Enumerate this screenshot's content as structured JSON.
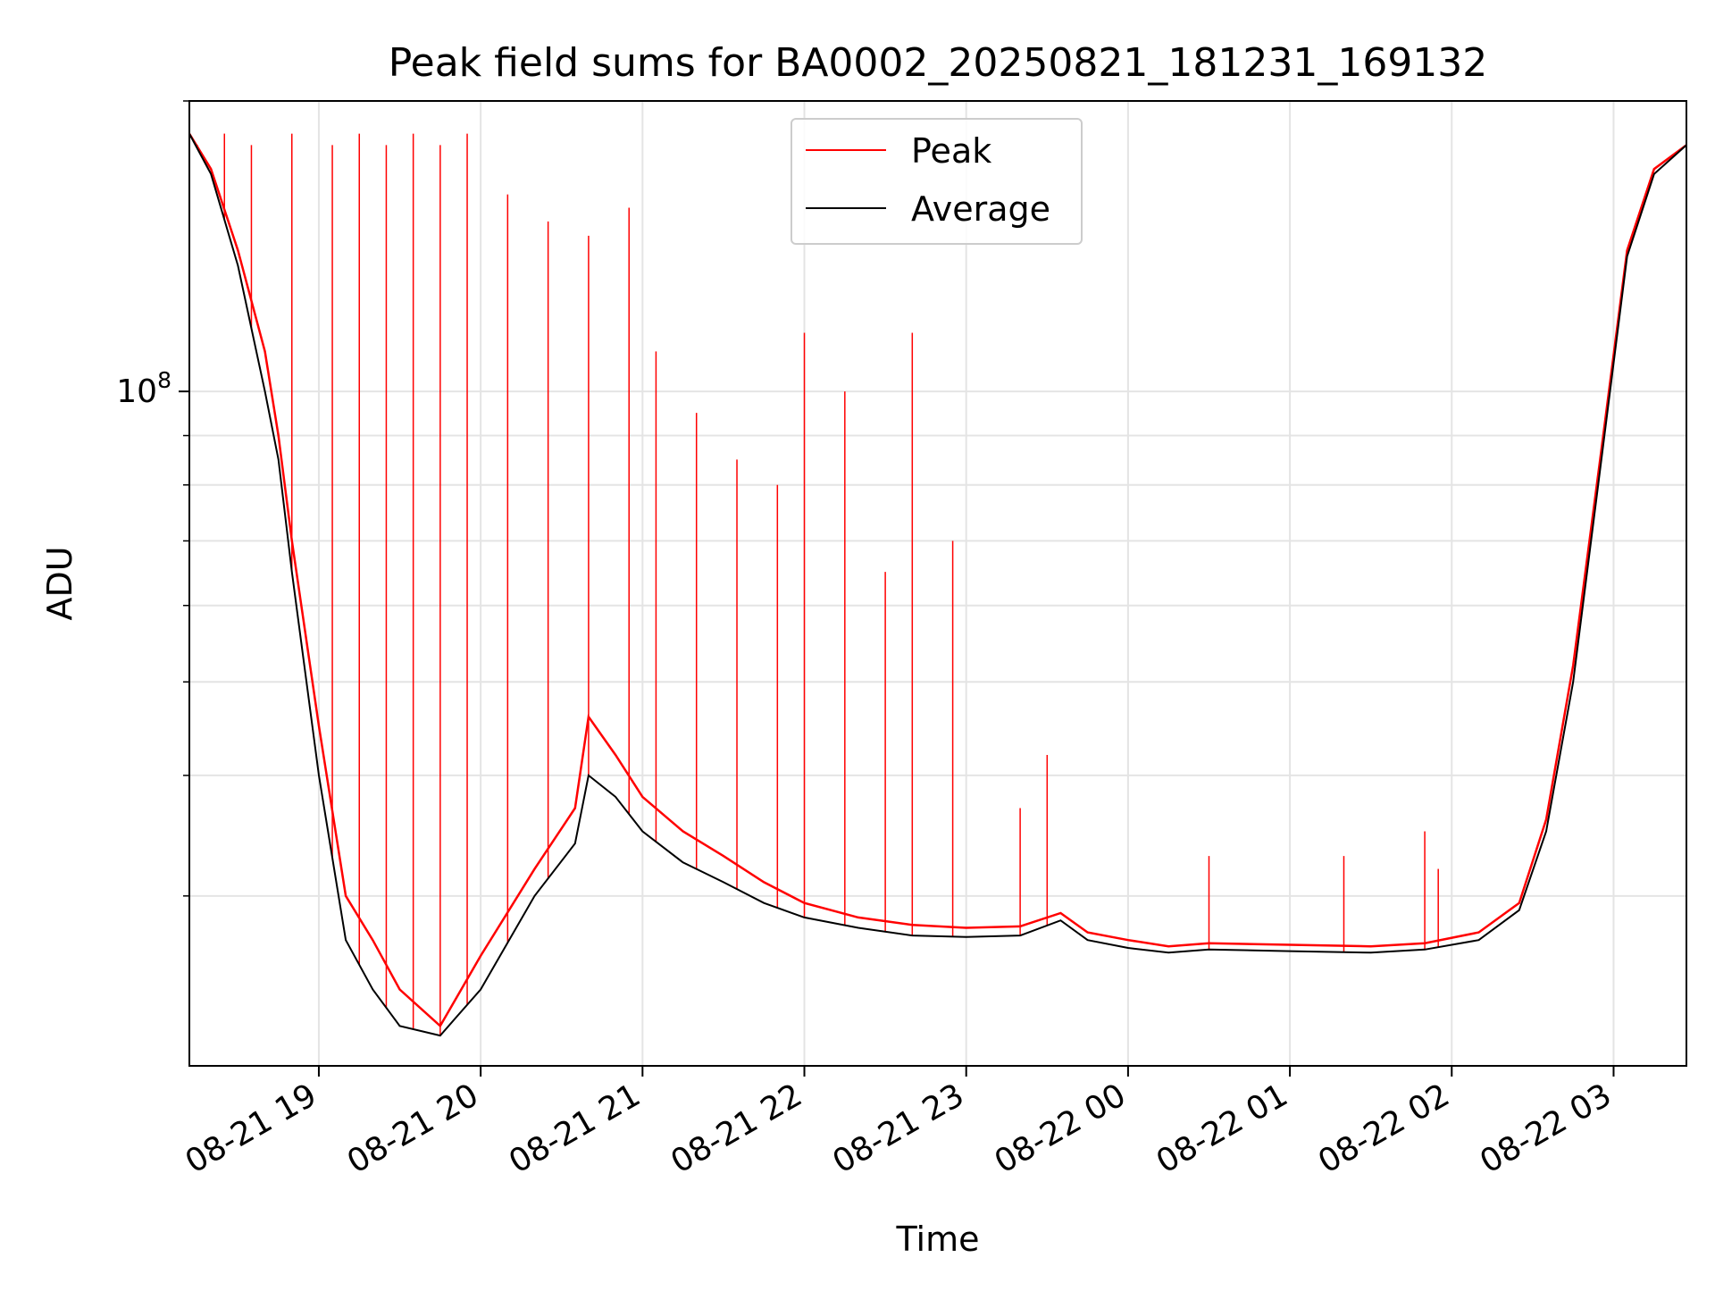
{
  "chart_data": {
    "type": "line",
    "title": "Peak field sums for BA0002_20250821_181231_169132",
    "xlabel": "Time",
    "ylabel": "ADU",
    "yscale": "log",
    "ylim": [
      20000000,
      200000000
    ],
    "xlim": [
      "2025-08-21 18:12",
      "2025-08-22 03:27"
    ],
    "x_ticks": [
      "08-21 19",
      "08-21 20",
      "08-21 21",
      "08-21 22",
      "08-21 23",
      "08-22 00",
      "08-22 01",
      "08-22 02",
      "08-22 03"
    ],
    "y_major_ticks": [
      {
        "value": 100000000,
        "base": "10",
        "exponent": "8"
      }
    ],
    "y_minor_ticks": [
      30000000,
      40000000,
      50000000,
      60000000,
      70000000,
      80000000,
      90000000,
      200000000
    ],
    "grid": true,
    "legend_position": "upper center",
    "colors": {
      "peak": "#ff0000",
      "average": "#000000"
    },
    "series": [
      {
        "name": "Peak",
        "color": "#ff0000",
        "points": [
          [
            "2025-08-21 18:12",
            185000000
          ],
          [
            "2025-08-21 18:20",
            170000000
          ],
          [
            "2025-08-21 18:30",
            140000000
          ],
          [
            "2025-08-21 18:40",
            110000000
          ],
          [
            "2025-08-21 18:45",
            90000000
          ],
          [
            "2025-08-21 18:50",
            70000000
          ],
          [
            "2025-08-21 19:00",
            45000000
          ],
          [
            "2025-08-21 19:10",
            30000000
          ],
          [
            "2025-08-21 19:20",
            27000000
          ],
          [
            "2025-08-21 19:30",
            24000000
          ],
          [
            "2025-08-21 19:45",
            22000000
          ],
          [
            "2025-08-21 20:00",
            26000000
          ],
          [
            "2025-08-21 20:20",
            32000000
          ],
          [
            "2025-08-21 20:35",
            37000000
          ],
          [
            "2025-08-21 20:40",
            46000000
          ],
          [
            "2025-08-21 20:50",
            42000000
          ],
          [
            "2025-08-21 21:00",
            38000000
          ],
          [
            "2025-08-21 21:15",
            35000000
          ],
          [
            "2025-08-21 21:30",
            33000000
          ],
          [
            "2025-08-21 21:45",
            31000000
          ],
          [
            "2025-08-21 22:00",
            29500000
          ],
          [
            "2025-08-21 22:20",
            28500000
          ],
          [
            "2025-08-21 22:40",
            28000000
          ],
          [
            "2025-08-21 23:00",
            27800000
          ],
          [
            "2025-08-21 23:20",
            27900000
          ],
          [
            "2025-08-21 23:35",
            28800000
          ],
          [
            "2025-08-21 23:45",
            27500000
          ],
          [
            "2025-08-22 00:00",
            27000000
          ],
          [
            "2025-08-22 00:15",
            26600000
          ],
          [
            "2025-08-22 00:30",
            26800000
          ],
          [
            "2025-08-22 01:00",
            26700000
          ],
          [
            "2025-08-22 01:30",
            26600000
          ],
          [
            "2025-08-22 01:50",
            26800000
          ],
          [
            "2025-08-22 02:10",
            27500000
          ],
          [
            "2025-08-22 02:25",
            29500000
          ],
          [
            "2025-08-22 02:35",
            36000000
          ],
          [
            "2025-08-22 02:45",
            52000000
          ],
          [
            "2025-08-22 02:55",
            85000000
          ],
          [
            "2025-08-22 03:05",
            140000000
          ],
          [
            "2025-08-22 03:15",
            170000000
          ],
          [
            "2025-08-22 03:27",
            180000000
          ]
        ],
        "spikes": [
          [
            "2025-08-21 18:15",
            180000000
          ],
          [
            "2025-08-21 18:25",
            185000000
          ],
          [
            "2025-08-21 18:35",
            180000000
          ],
          [
            "2025-08-21 18:50",
            185000000
          ],
          [
            "2025-08-21 19:05",
            180000000
          ],
          [
            "2025-08-21 19:15",
            185000000
          ],
          [
            "2025-08-21 19:25",
            180000000
          ],
          [
            "2025-08-21 19:35",
            185000000
          ],
          [
            "2025-08-21 19:45",
            180000000
          ],
          [
            "2025-08-21 19:55",
            185000000
          ],
          [
            "2025-08-21 20:10",
            160000000
          ],
          [
            "2025-08-21 20:25",
            150000000
          ],
          [
            "2025-08-21 20:40",
            145000000
          ],
          [
            "2025-08-21 20:55",
            155000000
          ],
          [
            "2025-08-21 21:05",
            110000000
          ],
          [
            "2025-08-21 21:20",
            95000000
          ],
          [
            "2025-08-21 21:35",
            85000000
          ],
          [
            "2025-08-21 21:50",
            80000000
          ],
          [
            "2025-08-21 22:00",
            115000000
          ],
          [
            "2025-08-21 22:15",
            100000000
          ],
          [
            "2025-08-21 22:30",
            65000000
          ],
          [
            "2025-08-21 22:40",
            115000000
          ],
          [
            "2025-08-21 22:55",
            70000000
          ],
          [
            "2025-08-21 23:20",
            37000000
          ],
          [
            "2025-08-21 23:30",
            42000000
          ],
          [
            "2025-08-22 00:30",
            33000000
          ],
          [
            "2025-08-22 01:20",
            33000000
          ],
          [
            "2025-08-22 01:50",
            35000000
          ],
          [
            "2025-08-22 01:55",
            32000000
          ]
        ]
      },
      {
        "name": "Average",
        "color": "#000000",
        "points": [
          [
            "2025-08-21 18:12",
            185000000
          ],
          [
            "2025-08-21 18:20",
            168000000
          ],
          [
            "2025-08-21 18:30",
            135000000
          ],
          [
            "2025-08-21 18:40",
            100000000
          ],
          [
            "2025-08-21 18:45",
            85000000
          ],
          [
            "2025-08-21 18:50",
            65000000
          ],
          [
            "2025-08-21 19:00",
            40000000
          ],
          [
            "2025-08-21 19:10",
            27000000
          ],
          [
            "2025-08-21 19:20",
            24000000
          ],
          [
            "2025-08-21 19:30",
            22000000
          ],
          [
            "2025-08-21 19:45",
            21500000
          ],
          [
            "2025-08-21 20:00",
            24000000
          ],
          [
            "2025-08-21 20:20",
            30000000
          ],
          [
            "2025-08-21 20:35",
            34000000
          ],
          [
            "2025-08-21 20:40",
            40000000
          ],
          [
            "2025-08-21 20:50",
            38000000
          ],
          [
            "2025-08-21 21:00",
            35000000
          ],
          [
            "2025-08-21 21:15",
            32500000
          ],
          [
            "2025-08-21 21:30",
            31000000
          ],
          [
            "2025-08-21 21:45",
            29500000
          ],
          [
            "2025-08-21 22:00",
            28500000
          ],
          [
            "2025-08-21 22:20",
            27800000
          ],
          [
            "2025-08-21 22:40",
            27300000
          ],
          [
            "2025-08-21 23:00",
            27200000
          ],
          [
            "2025-08-21 23:20",
            27300000
          ],
          [
            "2025-08-21 23:35",
            28300000
          ],
          [
            "2025-08-21 23:45",
            27000000
          ],
          [
            "2025-08-22 00:00",
            26500000
          ],
          [
            "2025-08-22 00:15",
            26200000
          ],
          [
            "2025-08-22 00:30",
            26400000
          ],
          [
            "2025-08-22 01:00",
            26300000
          ],
          [
            "2025-08-22 01:30",
            26200000
          ],
          [
            "2025-08-22 01:50",
            26400000
          ],
          [
            "2025-08-22 02:10",
            27000000
          ],
          [
            "2025-08-22 02:25",
            29000000
          ],
          [
            "2025-08-22 02:35",
            35000000
          ],
          [
            "2025-08-22 02:45",
            50000000
          ],
          [
            "2025-08-22 02:55",
            83000000
          ],
          [
            "2025-08-22 03:05",
            138000000
          ],
          [
            "2025-08-22 03:15",
            168000000
          ],
          [
            "2025-08-22 03:27",
            180000000
          ]
        ]
      }
    ]
  }
}
